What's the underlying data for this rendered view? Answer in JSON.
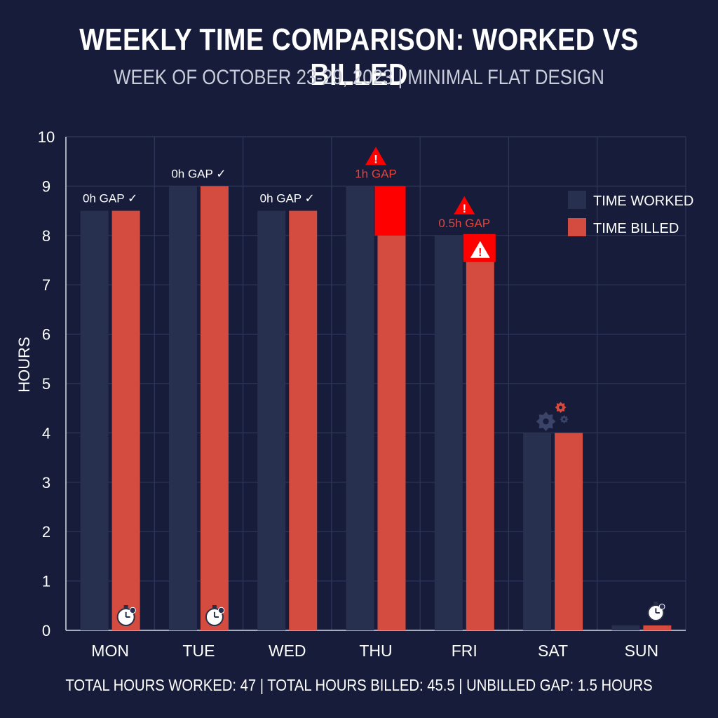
{
  "header": {
    "title": "WEEKLY TIME COMPARISON: WORKED VS BILLED",
    "subtitle": "WEEK OF OCTOBER 23-29, 2023 | MINIMAL FLAT DESIGN"
  },
  "footer": {
    "summary": "TOTAL HOURS WORKED: 47  |  TOTAL HOURS BILLED: 45.5  |  UNBILLED GAP: 1.5 HOURS"
  },
  "colors": {
    "background": "#161c3a",
    "worked": "#27304f",
    "billed": "#d44b3f",
    "alert": "#ff0000",
    "grid": "#2f385c",
    "gap_alert_text": "#e8443a"
  },
  "chart_data": {
    "type": "bar",
    "title": "WEEKLY TIME COMPARISON: WORKED VS BILLED",
    "subtitle": "WEEK OF OCTOBER 23-29, 2023 | MINIMAL FLAT DESIGN",
    "xlabel": "",
    "ylabel": "HOURS",
    "ylim": [
      0,
      10
    ],
    "yticks": [
      0,
      1,
      2,
      3,
      4,
      5,
      6,
      7,
      8,
      9,
      10
    ],
    "grid": true,
    "legend_position": "top-right",
    "categories": [
      "MON",
      "TUE",
      "WED",
      "THU",
      "FRI",
      "SAT",
      "SUN"
    ],
    "series": [
      {
        "name": "TIME WORKED",
        "values": [
          8.5,
          9,
          8.5,
          9,
          8,
          4,
          0.1
        ]
      },
      {
        "name": "TIME BILLED",
        "values": [
          8.5,
          9,
          8.5,
          8,
          7.5,
          4,
          0.1
        ]
      }
    ],
    "annotations": [
      {
        "category": "MON",
        "text": "0h GAP ✓",
        "alert": false
      },
      {
        "category": "TUE",
        "text": "0h GAP ✓",
        "alert": false
      },
      {
        "category": "WED",
        "text": "0h GAP ✓",
        "alert": false
      },
      {
        "category": "THU",
        "text": "1h GAP",
        "alert": true
      },
      {
        "category": "FRI",
        "text": "0.5h GAP",
        "alert": true
      }
    ],
    "icons": [
      {
        "category": "MON",
        "icon": "stopwatch-icon"
      },
      {
        "category": "TUE",
        "icon": "stopwatch-icon"
      },
      {
        "category": "SAT",
        "icon": "gears-icon"
      },
      {
        "category": "SUN",
        "icon": "stopwatch-icon"
      },
      {
        "category": "THU",
        "icon": "warning-icon"
      },
      {
        "category": "FRI",
        "icon": "warning-icon"
      }
    ]
  }
}
